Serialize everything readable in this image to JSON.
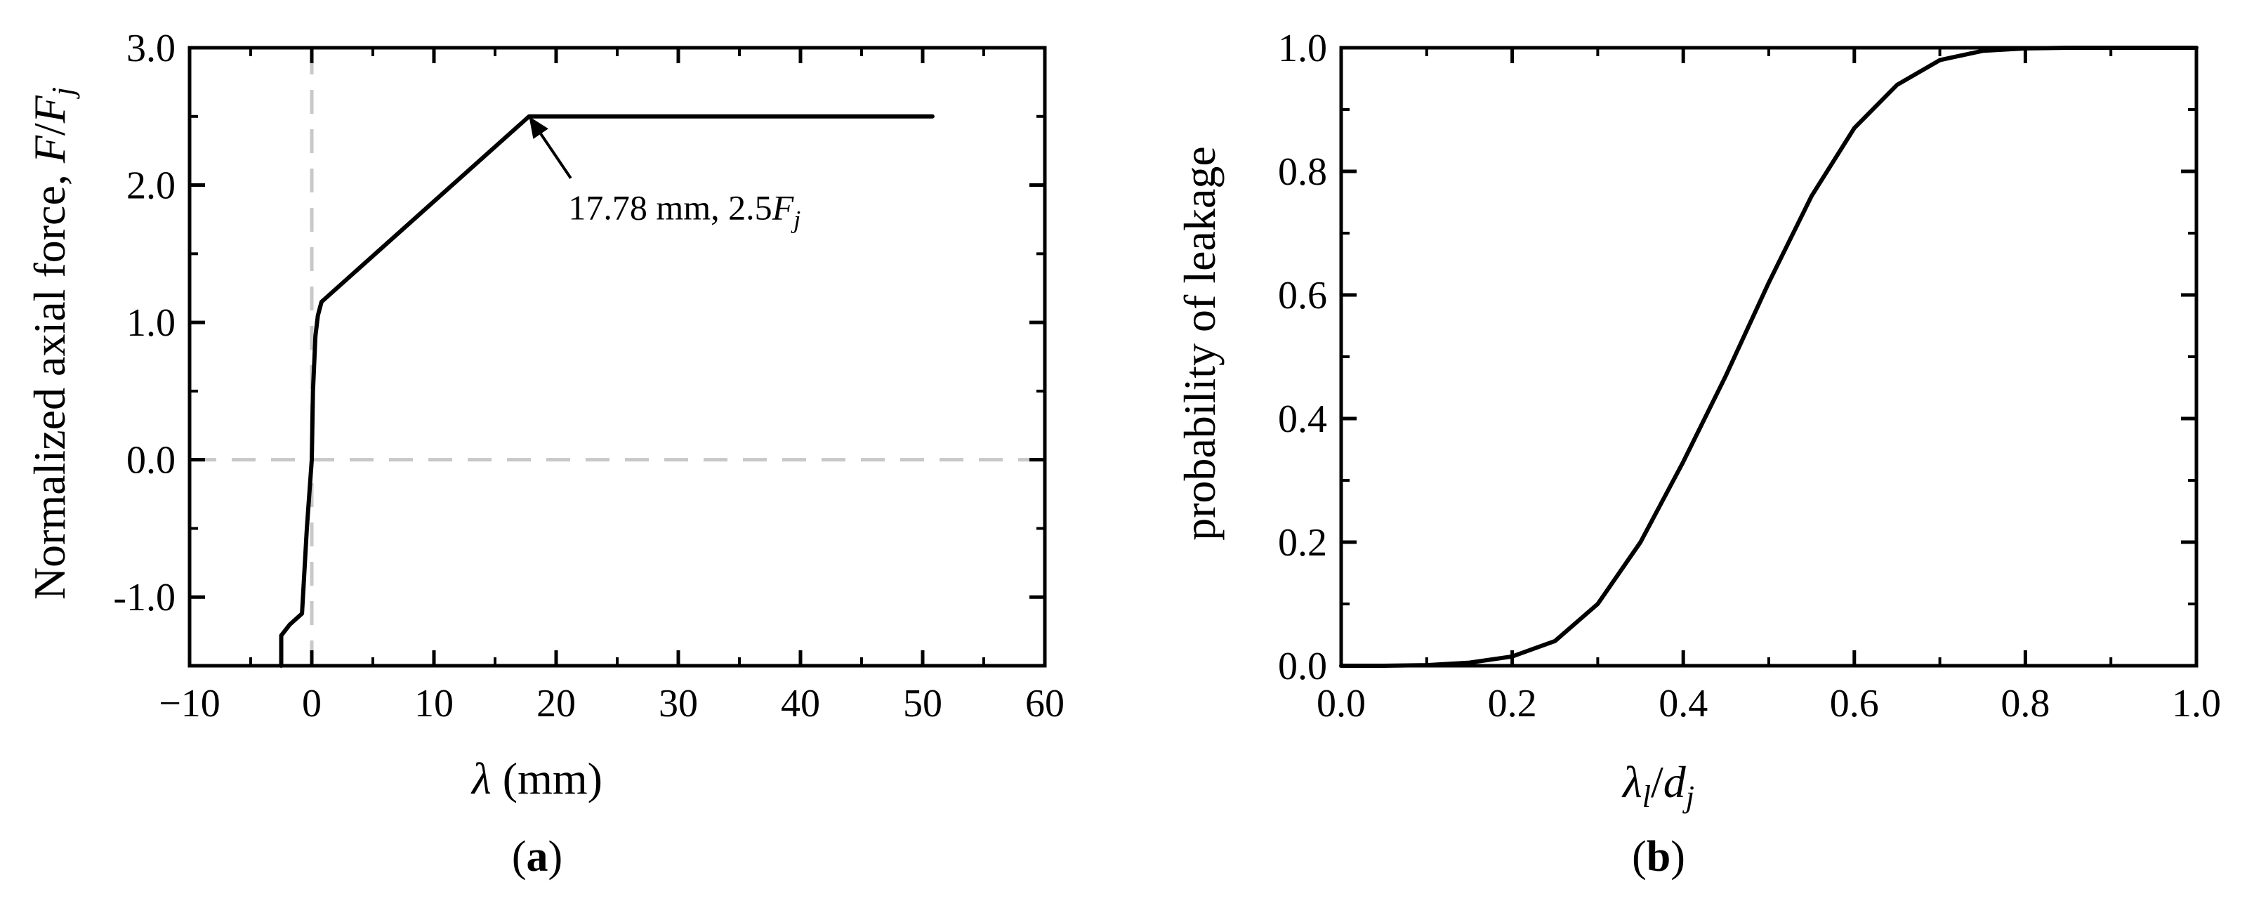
{
  "chart_data": [
    {
      "type": "line",
      "panel_label": "a",
      "xlabel": {
        "symbol": "λ",
        "rest": " (mm)"
      },
      "ylabel": {
        "text": "Normalized axial force, ",
        "F": "F",
        "slash": "/",
        "Fj": "F",
        "sub": "j"
      },
      "xlim": [
        -10,
        60
      ],
      "ylim": [
        -1.5,
        3.0
      ],
      "xticks": [
        -10,
        0,
        10,
        20,
        30,
        40,
        50,
        60
      ],
      "xtick_labels": [
        "−10",
        "0",
        "10",
        "20",
        "30",
        "40",
        "50",
        "60"
      ],
      "yticks": [
        -1.0,
        0.0,
        1.0,
        2.0,
        3.0
      ],
      "ytick_labels": [
        "-1.0",
        "0.0",
        "1.0",
        "2.0",
        "3.0"
      ],
      "grid": false,
      "reference_lines": [
        {
          "orientation": "vertical",
          "value": 0,
          "style": "dashed",
          "color": "#c8c8c8"
        },
        {
          "orientation": "horizontal",
          "value": 0,
          "style": "dashed",
          "color": "#c8c8c8"
        }
      ],
      "series": [
        {
          "color": "#000000",
          "x": [
            -2.5,
            -2.5,
            -1.8,
            -0.8,
            -0.4,
            0.0,
            0.1,
            0.3,
            0.5,
            0.8,
            17.78,
            50.8
          ],
          "y": [
            -1.5,
            -1.28,
            -1.2,
            -1.12,
            -0.5,
            0.0,
            0.5,
            0.9,
            1.05,
            1.15,
            2.5,
            2.5
          ]
        }
      ],
      "annotation": {
        "point": [
          17.78,
          2.5
        ],
        "text_pos": [
          21,
          1.75
        ],
        "tail": [
          21.2,
          2.05
        ],
        "text_main": "17.78 mm, 2.5",
        "text_F": "F",
        "text_sub": "j"
      }
    },
    {
      "type": "line",
      "panel_label": "b",
      "xlabel": {
        "main": "λ",
        "main_sub": "l",
        "slash": "/",
        "second": "d",
        "second_sub": "j"
      },
      "ylabel": {
        "text": "probability of leakage"
      },
      "xlim": [
        0.0,
        1.0
      ],
      "ylim": [
        0.0,
        1.0
      ],
      "xticks": [
        0.0,
        0.2,
        0.4,
        0.6,
        0.8,
        1.0
      ],
      "xtick_labels": [
        "0.0",
        "0.2",
        "0.4",
        "0.6",
        "0.8",
        "1.0"
      ],
      "yticks": [
        0.0,
        0.2,
        0.4,
        0.6,
        0.8,
        1.0
      ],
      "ytick_labels": [
        "0.0",
        "0.2",
        "0.4",
        "0.6",
        "0.8",
        "1.0"
      ],
      "grid": false,
      "series": [
        {
          "color": "#000000",
          "x": [
            0.0,
            0.05,
            0.1,
            0.15,
            0.2,
            0.25,
            0.3,
            0.35,
            0.4,
            0.45,
            0.5,
            0.55,
            0.6,
            0.65,
            0.7,
            0.75,
            0.8,
            0.85,
            0.9,
            0.95,
            1.0
          ],
          "y": [
            0.0,
            0.0,
            0.001,
            0.005,
            0.015,
            0.04,
            0.1,
            0.2,
            0.33,
            0.47,
            0.62,
            0.76,
            0.87,
            0.94,
            0.98,
            0.995,
            0.999,
            1.0,
            1.0,
            1.0,
            1.0
          ]
        }
      ]
    }
  ]
}
